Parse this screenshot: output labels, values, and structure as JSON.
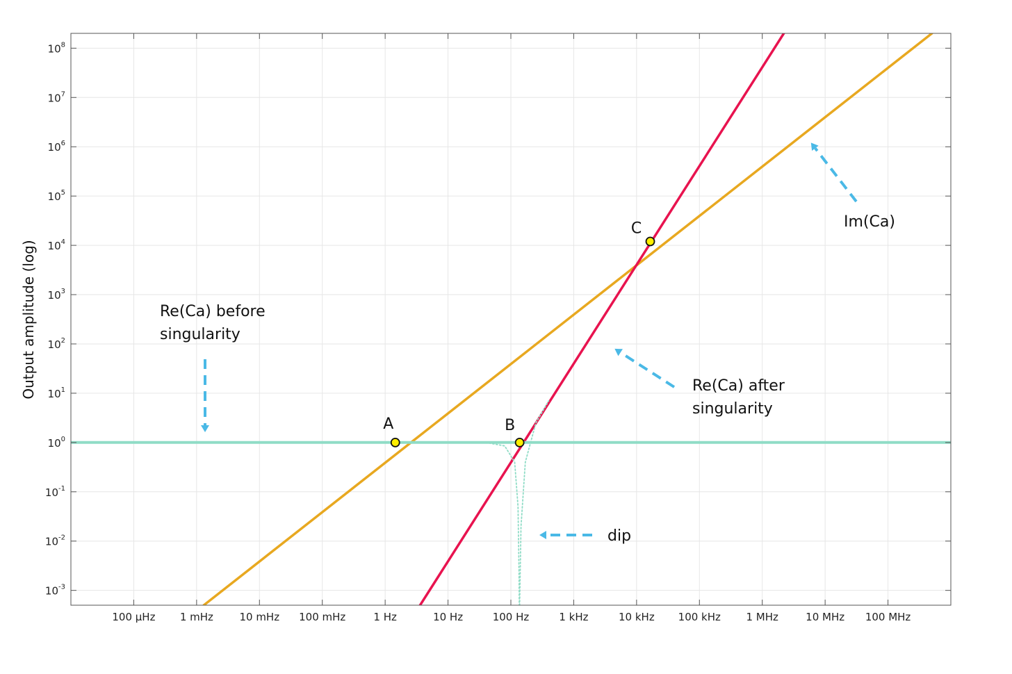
{
  "chart_data": {
    "type": "line",
    "xscale": "log",
    "yscale": "log",
    "xlim": [
      1e-05,
      1000000000.0
    ],
    "ylim": [
      0.0005,
      200000000.0
    ],
    "grid": true,
    "ylabel": "Output amplitude (log)",
    "xlabel": "",
    "x_ticks": [
      {
        "value": 0.0001,
        "label": "100 µHz"
      },
      {
        "value": 0.001,
        "label": "1 mHz"
      },
      {
        "value": 0.01,
        "label": "10 mHz"
      },
      {
        "value": 0.1,
        "label": "100 mHz"
      },
      {
        "value": 1,
        "label": "1 Hz"
      },
      {
        "value": 10,
        "label": "10 Hz"
      },
      {
        "value": 100,
        "label": "100 Hz"
      },
      {
        "value": 1000,
        "label": "1 kHz"
      },
      {
        "value": 10000,
        "label": "10 kHz"
      },
      {
        "value": 100000,
        "label": "100 kHz"
      },
      {
        "value": 1000000,
        "label": "1 MHz"
      },
      {
        "value": 10000000,
        "label": "10 MHz"
      },
      {
        "value": 100000000,
        "label": "100 MHz"
      }
    ],
    "y_ticks": [
      {
        "value": 0.001,
        "base": "10",
        "exp": "-3"
      },
      {
        "value": 0.01,
        "base": "10",
        "exp": "-2"
      },
      {
        "value": 0.1,
        "base": "10",
        "exp": "-1"
      },
      {
        "value": 1,
        "base": "10",
        "exp": "0"
      },
      {
        "value": 10,
        "base": "10",
        "exp": "1"
      },
      {
        "value": 100,
        "base": "10",
        "exp": "2"
      },
      {
        "value": 1000,
        "base": "10",
        "exp": "3"
      },
      {
        "value": 10000,
        "base": "10",
        "exp": "4"
      },
      {
        "value": 100000,
        "base": "10",
        "exp": "5"
      },
      {
        "value": 1000000,
        "base": "10",
        "exp": "6"
      },
      {
        "value": 10000000,
        "base": "10",
        "exp": "7"
      },
      {
        "value": 100000000,
        "base": "10",
        "exp": "8"
      }
    ],
    "series": [
      {
        "color": "#e8a820",
        "width": 3.5,
        "x": [
          0.0013,
          500000000
        ],
        "y": [
          0.0005,
          200000000
        ]
      },
      {
        "color": "#e8134f",
        "width": 3.5,
        "x": [
          3.6,
          2200000
        ],
        "y": [
          0.0005,
          200000000
        ]
      },
      {
        "color": "#8fdcc6",
        "width": 4,
        "x": [
          1e-05,
          1000000000.0
        ],
        "y": [
          1,
          1
        ]
      },
      {
        "color": "#8fdcc6",
        "width": 1.8,
        "dash": "2,3",
        "x": [
          40,
          80,
          115,
          130,
          135,
          136
        ],
        "y": [
          1,
          0.85,
          0.4,
          0.05,
          0.002,
          0.0005
        ]
      },
      {
        "color": "#8fdcc6",
        "width": 1.8,
        "dash": "2,3",
        "x": [
          138,
          145,
          170,
          250,
          400
        ],
        "y": [
          0.0005,
          0.02,
          0.4,
          2.5,
          7
        ]
      }
    ],
    "points": [
      {
        "label": "A",
        "x": 1.45,
        "y": 1
      },
      {
        "label": "B",
        "x": 138,
        "y": 1
      },
      {
        "label": "C",
        "x": 16500,
        "y": 12000
      }
    ],
    "annotations": [
      {
        "lines": [
          "Re(Ca) before",
          "singularity"
        ]
      },
      {
        "lines": [
          "Re(Ca) after",
          "singularity"
        ]
      },
      {
        "lines": [
          "Im(Ca)"
        ]
      },
      {
        "lines": [
          "dip"
        ]
      }
    ],
    "arrow_color": "#4ab9e6",
    "marker_fill": "#ffee00"
  }
}
